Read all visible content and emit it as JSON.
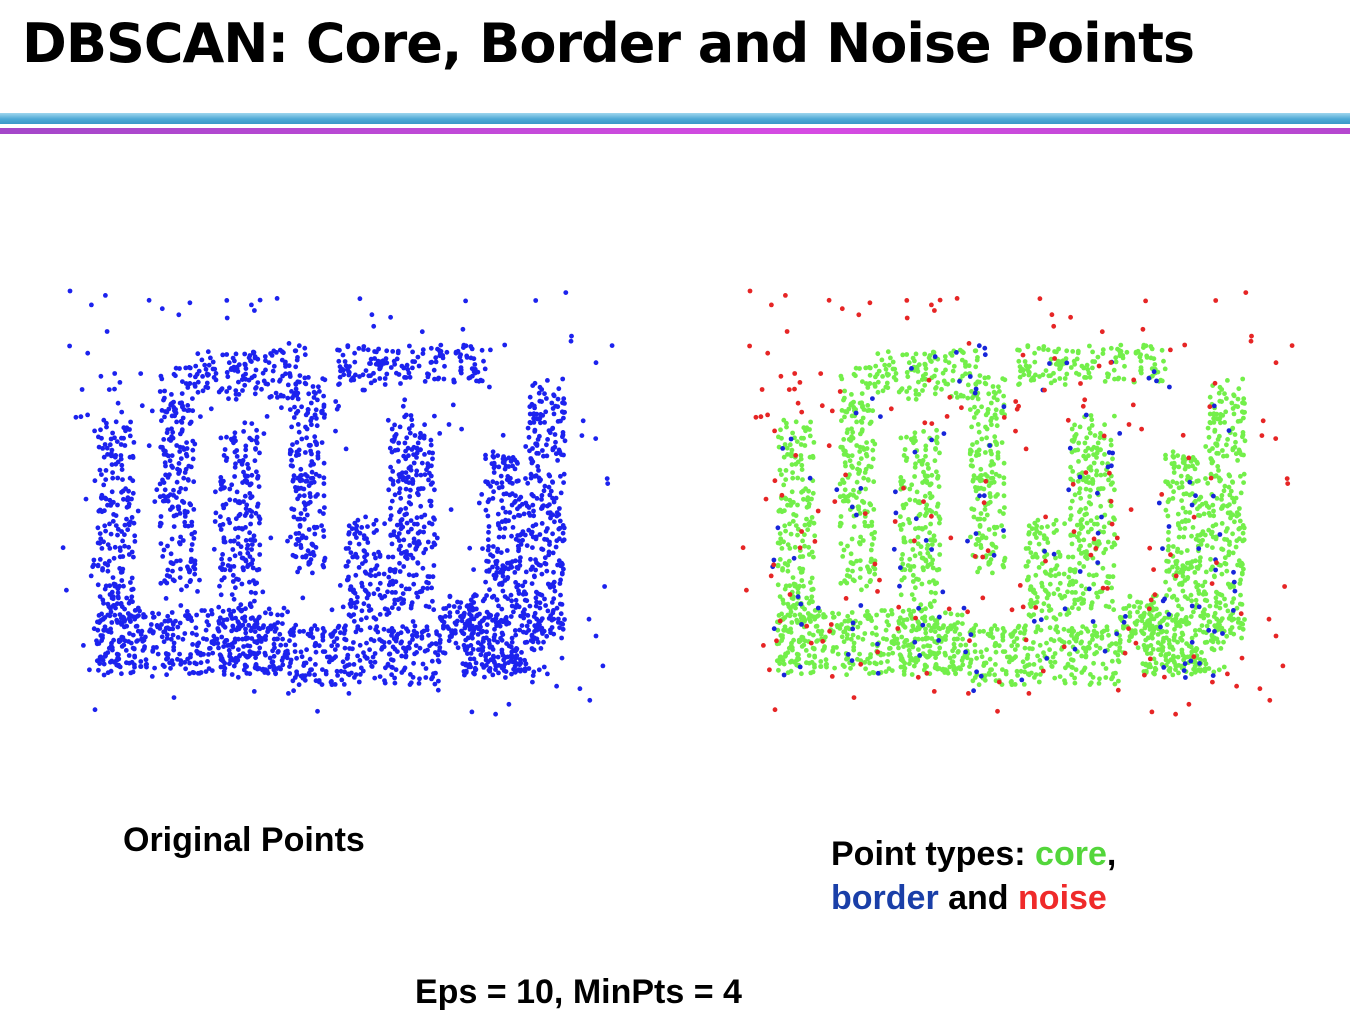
{
  "slide": {
    "title": "DBSCAN: Core, Border and Noise Points"
  },
  "colors": {
    "original_points": "#1c22ee",
    "core": "#73ef4a",
    "border": "#1725d9",
    "noise": "#e62525",
    "title_rule_top": "#4fa9d6",
    "title_rule_bottom": "#d64be3"
  },
  "captions": {
    "left": "Original Points",
    "right_prefix": "Point types: ",
    "core_word": "core",
    "comma": ",",
    "border_word": "border",
    "and_word": " and ",
    "noise_word": "noise",
    "params": "Eps = 10, MinPts = 4"
  }
}
